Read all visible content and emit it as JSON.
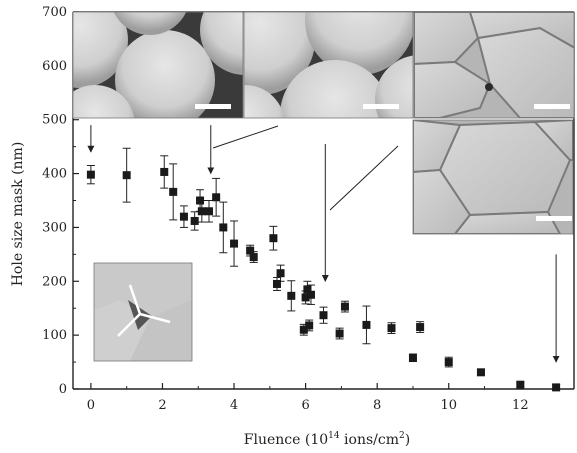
{
  "chart_data": {
    "type": "scatter",
    "title": "",
    "xlabel": {
      "main": "Fluence (10",
      "sup": "14",
      "unit": " ions/cm",
      "unit_sup": "2",
      "close": ")"
    },
    "ylabel": "Hole size mask  (nm)",
    "xlim": [
      -0.5,
      13.5
    ],
    "ylim": [
      0,
      700
    ],
    "x_ticks": [
      0,
      2,
      4,
      6,
      8,
      10,
      12
    ],
    "x_tick_labels": [
      "0",
      "2",
      "4",
      "6",
      "8",
      "10",
      "12"
    ],
    "y_ticks": [
      0,
      100,
      200,
      300,
      400,
      500,
      600,
      700
    ],
    "y_tick_labels": [
      "0",
      "100",
      "200",
      "300",
      "400",
      "500",
      "600",
      "700"
    ],
    "grid": false,
    "marker": "filled-square",
    "marker_color": "#1a1a1a",
    "points": [
      {
        "x": 0.0,
        "y": 398,
        "err": 17
      },
      {
        "x": 1.0,
        "y": 397,
        "err": 50
      },
      {
        "x": 2.05,
        "y": 403,
        "err": 30
      },
      {
        "x": 2.3,
        "y": 366,
        "err": 52
      },
      {
        "x": 2.6,
        "y": 320,
        "err": 20
      },
      {
        "x": 2.9,
        "y": 312,
        "err": 17
      },
      {
        "x": 3.05,
        "y": 350,
        "err": 20
      },
      {
        "x": 3.1,
        "y": 330,
        "err": 20
      },
      {
        "x": 3.3,
        "y": 330,
        "err": 20
      },
      {
        "x": 3.5,
        "y": 356,
        "err": 35
      },
      {
        "x": 3.7,
        "y": 300,
        "err": 47
      },
      {
        "x": 4.0,
        "y": 270,
        "err": 42
      },
      {
        "x": 4.45,
        "y": 257,
        "err": 10
      },
      {
        "x": 4.55,
        "y": 245,
        "err": 10
      },
      {
        "x": 5.1,
        "y": 280,
        "err": 22
      },
      {
        "x": 5.2,
        "y": 195,
        "err": 12
      },
      {
        "x": 5.3,
        "y": 215,
        "err": 15
      },
      {
        "x": 5.6,
        "y": 173,
        "err": 28
      },
      {
        "x": 5.95,
        "y": 110,
        "err": 10
      },
      {
        "x": 6.0,
        "y": 170,
        "err": 12
      },
      {
        "x": 6.05,
        "y": 185,
        "err": 15
      },
      {
        "x": 6.1,
        "y": 118,
        "err": 10
      },
      {
        "x": 6.15,
        "y": 175,
        "err": 18
      },
      {
        "x": 6.5,
        "y": 137,
        "err": 15
      },
      {
        "x": 6.95,
        "y": 103,
        "err": 10
      },
      {
        "x": 7.1,
        "y": 153,
        "err": 10
      },
      {
        "x": 7.7,
        "y": 119,
        "err": 35
      },
      {
        "x": 8.4,
        "y": 113,
        "err": 10
      },
      {
        "x": 9.0,
        "y": 58,
        "err": 7
      },
      {
        "x": 9.2,
        "y": 115,
        "err": 10
      },
      {
        "x": 10.0,
        "y": 50,
        "err": 9
      },
      {
        "x": 10.9,
        "y": 31,
        "err": 5
      },
      {
        "x": 12.0,
        "y": 8,
        "err": 4
      },
      {
        "x": 13.0,
        "y": 3,
        "err": 5
      }
    ],
    "arrows": [
      {
        "x": 0.0,
        "y_from": 490,
        "y_to": 440
      },
      {
        "x": 3.35,
        "y_from": 490,
        "y_to": 400
      },
      {
        "x": 6.55,
        "y_from": 455,
        "y_to": 200
      },
      {
        "x": 13.0,
        "y_from": 250,
        "y_to": 50
      }
    ]
  },
  "insets": [
    {
      "name": "inset-sem-circles",
      "scale_bar": true
    },
    {
      "name": "inset-sem-rounded",
      "scale_bar": true
    },
    {
      "name": "inset-sem-polygon",
      "scale_bar": true
    },
    {
      "name": "inset-sem-hexagon",
      "scale_bar": true
    },
    {
      "name": "inset-sem-triangle-gap",
      "scale_bar": false
    }
  ],
  "colors": {
    "axis": "#222222",
    "sem_light": "#d4d4d4",
    "sem_mid": "#b3b3b3",
    "sem_dark": "#4a4a4a"
  }
}
